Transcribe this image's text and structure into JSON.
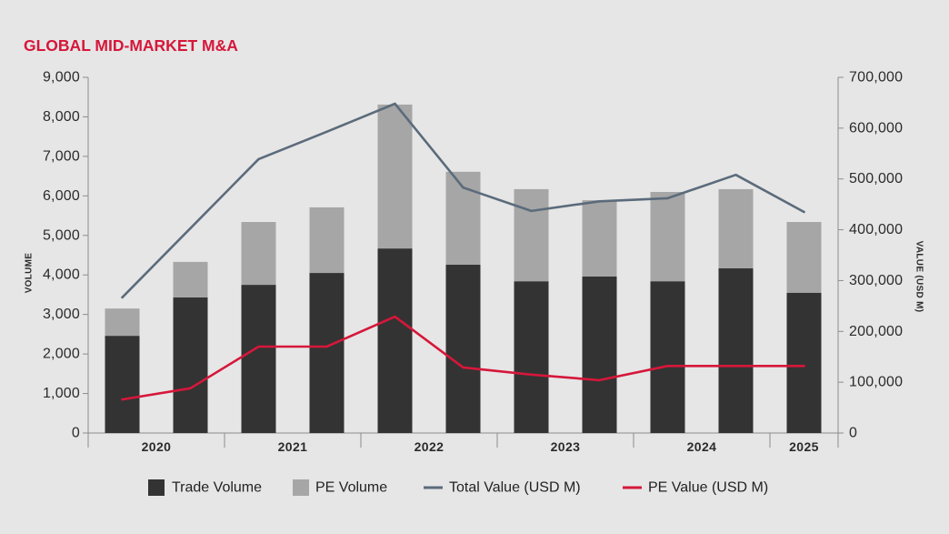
{
  "chart_data": {
    "type": "bar",
    "title": "GLOBAL MID-MARKET M&A",
    "groups": [
      {
        "label": "2020",
        "bars": 2
      },
      {
        "label": "2021",
        "bars": 2
      },
      {
        "label": "2022",
        "bars": 2
      },
      {
        "label": "2023",
        "bars": 2
      },
      {
        "label": "2024",
        "bars": 2
      },
      {
        "label": "2025",
        "bars": 1
      }
    ],
    "y_left": {
      "label": "VOLUME",
      "lim": [
        0,
        9000
      ],
      "ticks": [
        "0",
        "1,000",
        "2,000",
        "3,000",
        "4,000",
        "5,000",
        "6,000",
        "7,000",
        "8,000",
        "9,000"
      ]
    },
    "y_right": {
      "label": "VALUE (USD M)",
      "lim": [
        0,
        700000
      ],
      "ticks": [
        "0",
        "100,000",
        "200,000",
        "300,000",
        "400,000",
        "500,000",
        "600,000",
        "700,000"
      ]
    },
    "grid": false,
    "legend": "bottom",
    "series": [
      {
        "name": "Trade Volume",
        "type": "bar",
        "axis": "left",
        "color": "#333333",
        "values": [
          2460,
          3430,
          3750,
          4050,
          4670,
          4260,
          3840,
          3960,
          3840,
          4170,
          3550
        ]
      },
      {
        "name": "PE Volume",
        "type": "bar",
        "axis": "left",
        "color": "#a6a6a6",
        "values": [
          690,
          900,
          1590,
          1660,
          3640,
          2350,
          2330,
          1930,
          2260,
          2000,
          1790
        ]
      },
      {
        "name": "Total Value (USD M)",
        "type": "line",
        "axis": "right",
        "color": "#5b6b7b",
        "values": [
          267000,
          403000,
          539000,
          593000,
          648000,
          483000,
          437000,
          456000,
          462000,
          508000,
          435000
        ]
      },
      {
        "name": "PE Value (USD M)",
        "type": "line",
        "axis": "right",
        "color": "#d6173a",
        "values": [
          66000,
          88000,
          170000,
          170000,
          229000,
          129000,
          115000,
          104000,
          132000,
          132000,
          132000
        ]
      }
    ]
  },
  "colors": {
    "title": "#d6173a",
    "background": "#e6e6e6",
    "axis": "#8c8c8c",
    "text": "#2b2b2b"
  }
}
